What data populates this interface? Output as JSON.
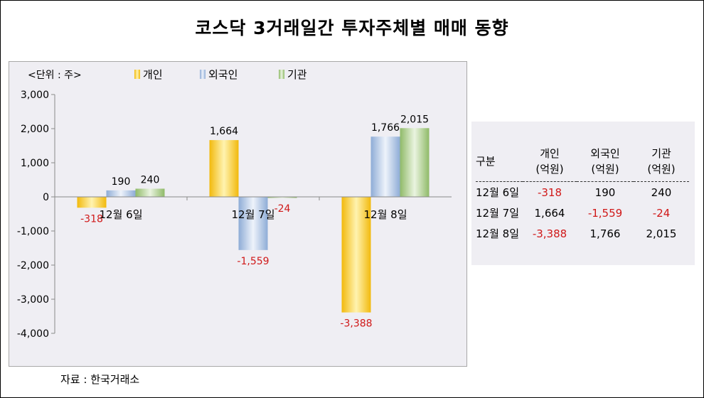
{
  "title": "코스닥 3거래일간 투자주체별 매매 동향",
  "unit_label": "<단위 : 주>",
  "source": "자료 : 한국거래소",
  "colors": {
    "individual": "#f5c21a",
    "foreign": "#9ab4d8",
    "institution": "#9cc277",
    "negative_text": "#d01818"
  },
  "chart_data": {
    "type": "bar",
    "categories": [
      "12월 6일",
      "12월 7일",
      "12월 8일"
    ],
    "series": [
      {
        "name": "개인",
        "values": [
          -318,
          1664,
          -3388
        ],
        "labels": [
          "-318",
          "1,664",
          "-3,388"
        ]
      },
      {
        "name": "외국인",
        "values": [
          190,
          -1559,
          1766
        ],
        "labels": [
          "190",
          "-1,559",
          "1,766"
        ]
      },
      {
        "name": "기관",
        "values": [
          240,
          -24,
          2015
        ],
        "labels": [
          "240",
          "-24",
          "2,015"
        ]
      }
    ],
    "ylim": [
      -4000,
      3000
    ],
    "yticks": [
      3000,
      2000,
      1000,
      0,
      -1000,
      -2000,
      -3000,
      -4000
    ],
    "ytick_labels": [
      "3,000",
      "2,000",
      "1,000",
      "0",
      "-1,000",
      "-2,000",
      "-3,000",
      "-4,000"
    ],
    "legend_position": "top",
    "grid": false
  },
  "table": {
    "headers": [
      {
        "line1": "구분",
        "line2": ""
      },
      {
        "line1": "개인",
        "line2": "(억원)"
      },
      {
        "line1": "외국인",
        "line2": "(억원)"
      },
      {
        "line1": "기관",
        "line2": "(억원)"
      }
    ],
    "rows": [
      {
        "date": "12월 6일",
        "individual": "-318",
        "foreign": "190",
        "institution": "240"
      },
      {
        "date": "12월 7일",
        "individual": "1,664",
        "foreign": "-1,559",
        "institution": "-24"
      },
      {
        "date": "12월 8일",
        "individual": "-3,388",
        "foreign": "1,766",
        "institution": "2,015"
      }
    ]
  }
}
